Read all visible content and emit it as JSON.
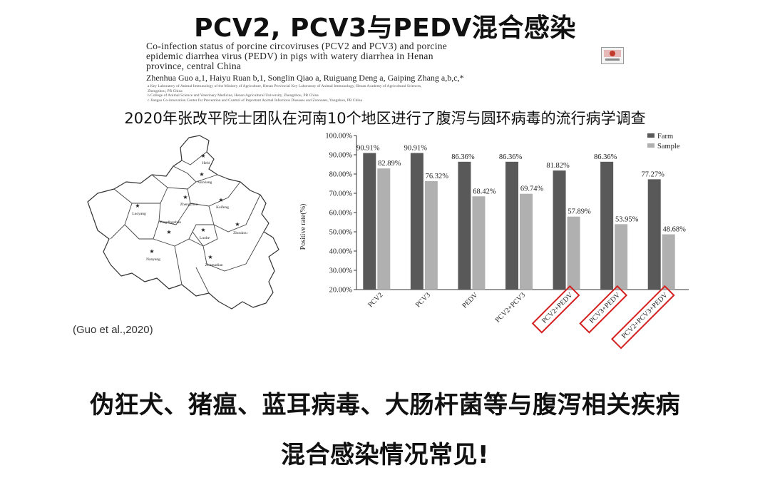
{
  "header": {
    "title": "PCV2, PCV3与PEDV混合感染"
  },
  "paper": {
    "title_lines": [
      "Co-infection status of porcine circoviruses (PCV2 and PCV3) and porcine",
      "epidemic diarrhea virus (PEDV) in pigs with watery diarrhea in Henan",
      "province, central China"
    ],
    "authors": "Zhenhua Guo a,1, Haiyu Ruan b,1, Songlin Qiao a, Ruiguang Deng a, Gaiping Zhang a,b,c,*",
    "affiliations": [
      "a Key Laboratory of Animal Immunology of the Ministry of Agriculture, Henan Provincial Key Laboratory of Animal Immunology, Henan Academy of Agricultural Sciences,",
      "Zhengzhou, PR China",
      "b College of Animal Science and Veterinary Medicine, Henan Agricultural University, Zhengzhou, PR China",
      "c Jiangsu Co-innovation Center for Prevention and Control of Important Animal Infectious Diseases and Zoonoses, Yangzhou, PR China"
    ]
  },
  "subtitle": "2020年张改平院士团队在河南10个地区进行了腹泻与圆环病毒的流行病学调查",
  "map": {
    "cities": [
      "Hebi",
      "Xinxiang",
      "Zhengzhou",
      "Kaifeng",
      "Luoyang",
      "Pingdingshan",
      "Luohe",
      "Zhoukou",
      "Nanyang",
      "Zhumadian"
    ]
  },
  "citation": "(Guo et al.,2020)",
  "chart_data": {
    "type": "bar",
    "categories": [
      "PCV2",
      "PCV3",
      "PEDV",
      "PCV2+PCV3",
      "PCV2+PEDV",
      "PCV3+PEDV",
      "PCV2+PCV3+PEDV"
    ],
    "series": [
      {
        "name": "Farm",
        "values": [
          90.91,
          90.91,
          86.36,
          86.36,
          81.82,
          86.36,
          77.27
        ],
        "labels": [
          "90.91%",
          "90.91%",
          "86.36%",
          "86.36%",
          "81.82%",
          "86.36%",
          "77.27%"
        ],
        "color": "#595959"
      },
      {
        "name": "Sample",
        "values": [
          82.89,
          76.32,
          68.42,
          69.74,
          57.89,
          53.95,
          48.68
        ],
        "labels": [
          "82.89%",
          "76.32%",
          "68.42%",
          "69.74%",
          "57.89%",
          "53.95%",
          "48.68%"
        ],
        "color": "#b0b0b0"
      }
    ],
    "ylabel": "Positive rate(%)",
    "ylim": [
      20,
      100
    ],
    "yticks": [
      "20.00%",
      "30.00%",
      "40.00%",
      "50.00%",
      "60.00%",
      "70.00%",
      "80.00%",
      "90.00%",
      "100.00%"
    ],
    "legend_position": "top-right",
    "highlighted_categories": [
      "PCV2+PEDV",
      "PCV3+PEDV",
      "PCV2+PCV3+PEDV"
    ],
    "highlight_color": "#d42020"
  },
  "bottom": {
    "line1": "伪狂犬、猪瘟、蓝耳病毒、大肠杆菌等与腹泻相关疾病",
    "line2": "混合感染情况常见!"
  }
}
